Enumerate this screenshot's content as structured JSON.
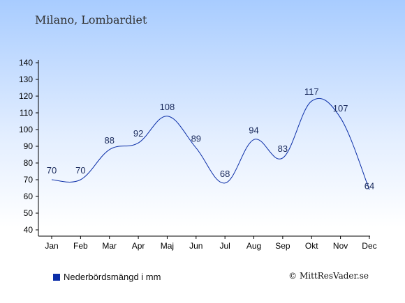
{
  "title": "Milano, Lombardiet",
  "legend": {
    "label": "Nederbördsmängd i mm",
    "color": "#0b2ea8"
  },
  "credit": "© MittResVader.se",
  "chart_data": {
    "type": "line",
    "categories": [
      "Jan",
      "Feb",
      "Mar",
      "Apr",
      "Maj",
      "Jun",
      "Jul",
      "Aug",
      "Sep",
      "Okt",
      "Nov",
      "Dec"
    ],
    "series": [
      {
        "name": "Nederbördsmängd i mm",
        "values": [
          70,
          70,
          88,
          92,
          108,
          89,
          68,
          94,
          83,
          117,
          107,
          64
        ],
        "color": "#0b2ea8"
      }
    ],
    "ylim": [
      40,
      140
    ],
    "yticks": [
      40,
      50,
      60,
      70,
      80,
      90,
      100,
      110,
      120,
      130,
      140
    ],
    "grid": false,
    "legend_position": "bottom-left"
  }
}
